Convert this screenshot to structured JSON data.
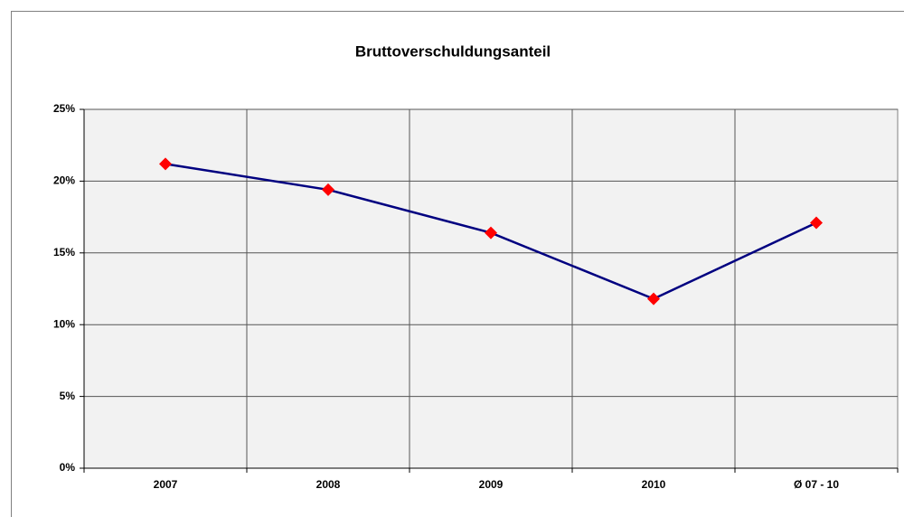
{
  "chart_data": {
    "type": "line",
    "title": "Bruttoverschuldungsanteil",
    "categories": [
      "2007",
      "2008",
      "2009",
      "2010",
      "Ø 07 - 10"
    ],
    "series": [
      {
        "color": "#000080",
        "marker_color": "#ff0000",
        "values": [
          21.2,
          19.4,
          16.4,
          11.8,
          17.1
        ]
      }
    ],
    "ylim": [
      0,
      25
    ],
    "yticks": [
      {
        "value": 0,
        "label": "0%"
      },
      {
        "value": 5,
        "label": "5%"
      },
      {
        "value": 10,
        "label": "10%"
      },
      {
        "value": 15,
        "label": "15%"
      },
      {
        "value": 20,
        "label": "20%"
      },
      {
        "value": 25,
        "label": "25%"
      }
    ],
    "grid": true
  }
}
